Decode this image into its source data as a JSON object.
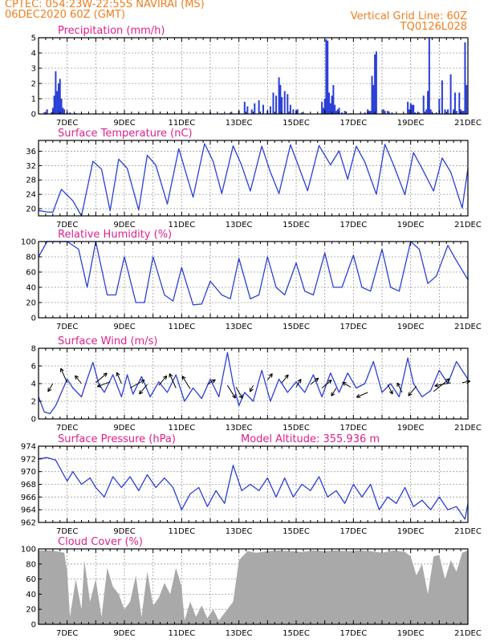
{
  "header": {
    "line1_left": "CPTEC:   054:23W-22:55S   NAVIRAI (MS)",
    "line2_left": "06DEC2020 60Z (GMT)",
    "line1_right": "Vertical Grid Line: 60Z",
    "line2_right": "TQ0126L028"
  },
  "colors": {
    "header": "#f07d1e",
    "title": "#e0208a",
    "line": "#2a3fd8",
    "cloud": "#a9a9a9"
  },
  "x_axis": {
    "range_days": [
      6.0,
      21.0
    ],
    "ticks": [
      {
        "day": 7,
        "label": "7DEC"
      },
      {
        "day": 9,
        "label": "9DEC"
      },
      {
        "day": 11,
        "label": "11DEC"
      },
      {
        "day": 13,
        "label": "13DEC"
      },
      {
        "day": 15,
        "label": "15DEC"
      },
      {
        "day": 17,
        "label": "17DEC"
      },
      {
        "day": 19,
        "label": "19DEC"
      },
      {
        "day": 21,
        "label": "21DEC"
      }
    ]
  },
  "chart_data": [
    {
      "type": "bar",
      "title": "Precipitation (mm/h)",
      "ylim": [
        0,
        5
      ],
      "yticks": [
        0,
        1,
        2,
        3,
        4,
        5
      ],
      "x": [
        6.2,
        6.3,
        6.45,
        6.5,
        6.55,
        6.6,
        6.65,
        6.7,
        6.75,
        6.8,
        6.85,
        6.9,
        7.0,
        7.1,
        7.3,
        7.5,
        8.0,
        8.5,
        9.0,
        9.5,
        10.0,
        10.5,
        11.0,
        11.5,
        12.0,
        12.4,
        12.7,
        13.0,
        13.2,
        13.3,
        13.45,
        13.55,
        13.7,
        13.85,
        14.0,
        14.1,
        14.2,
        14.3,
        14.4,
        14.45,
        14.5,
        14.6,
        14.7,
        14.8,
        14.9,
        15.0,
        15.05,
        15.2,
        15.9,
        15.95,
        16.0,
        16.05,
        16.1,
        16.15,
        16.2,
        16.25,
        16.3,
        16.35,
        16.4,
        16.45,
        16.5,
        16.6,
        16.7,
        16.9,
        17.4,
        17.5,
        17.55,
        17.6,
        17.65,
        17.7,
        17.75,
        17.8,
        18.05,
        18.1,
        18.2,
        18.35,
        18.9,
        18.95,
        19.0,
        19.05,
        19.1,
        19.15,
        19.2,
        19.3,
        19.45,
        19.55,
        19.6,
        19.65,
        19.7,
        19.8,
        19.9,
        20.0,
        20.1,
        20.2,
        20.3,
        20.4,
        20.5,
        20.55,
        20.6,
        20.7,
        20.75,
        20.8,
        20.85,
        20.9,
        20.95
      ],
      "values": [
        0.1,
        0.3,
        0.1,
        0.4,
        1.2,
        2.8,
        1.5,
        2.0,
        2.3,
        1.0,
        0.4,
        0.3,
        0.1,
        0.1,
        0.05,
        0.05,
        0.05,
        0.05,
        0.05,
        0.05,
        0.05,
        0.05,
        0.05,
        0.05,
        0.1,
        0.05,
        0.1,
        0.2,
        0.8,
        0.5,
        0.3,
        0.7,
        0.9,
        0.6,
        0.2,
        0.5,
        1.4,
        1.2,
        2.4,
        1.9,
        1.1,
        1.5,
        1.3,
        0.6,
        0.3,
        0.2,
        0.3,
        0.1,
        0.8,
        0.4,
        1.0,
        4.9,
        4.8,
        1.4,
        0.7,
        1.2,
        1.9,
        0.6,
        0.2,
        0.3,
        0.4,
        0.1,
        0.2,
        0.05,
        0.1,
        0.3,
        0.2,
        0.2,
        2.5,
        1.9,
        3.9,
        4.1,
        0.3,
        0.2,
        0.2,
        0.1,
        0.8,
        0.3,
        0.7,
        0.6,
        0.6,
        0.1,
        0.05,
        0.1,
        1.2,
        0.3,
        1.5,
        5.0,
        0.3,
        0.05,
        0.1,
        1.0,
        2.2,
        0.3,
        0.3,
        2.6,
        0.3,
        1.4,
        0.2,
        1.4,
        0.3,
        0.2,
        0.2,
        4.7,
        1.9
      ]
    },
    {
      "type": "line",
      "title": "Surface Temperature (nC)",
      "ylim": [
        18,
        39
      ],
      "yticks": [
        20,
        24,
        28,
        32,
        36
      ],
      "x": [
        6.0,
        6.3,
        6.5,
        6.8,
        7.2,
        7.5,
        7.9,
        8.2,
        8.5,
        8.8,
        9.1,
        9.5,
        9.8,
        10.1,
        10.5,
        10.9,
        11.4,
        11.8,
        12.1,
        12.4,
        12.8,
        13.1,
        13.4,
        13.8,
        14.1,
        14.4,
        14.8,
        15.1,
        15.4,
        15.8,
        16.2,
        16.5,
        16.8,
        17.1,
        17.4,
        17.8,
        18.1,
        18.4,
        18.8,
        19.1,
        19.4,
        19.8,
        20.1,
        20.4,
        20.8,
        21.0
      ],
      "values": [
        19.5,
        19.1,
        19.0,
        25.4,
        22.2,
        18.0,
        33.2,
        31.0,
        19.4,
        33.8,
        31.2,
        19.6,
        34.9,
        32.1,
        21.3,
        36.7,
        23.2,
        38.1,
        33.2,
        24.2,
        37.5,
        32.0,
        24.9,
        37.4,
        30.2,
        24.2,
        37.8,
        31.5,
        25.0,
        37.6,
        32.2,
        36.1,
        28.2,
        37.4,
        33.0,
        24.0,
        37.9,
        32.2,
        23.9,
        35.6,
        31.2,
        24.9,
        34.1,
        30.2,
        20.2,
        31.2
      ]
    },
    {
      "type": "line",
      "title": "Relative Humidity (%)",
      "ylim": [
        0,
        100
      ],
      "yticks": [
        0,
        20,
        40,
        60,
        80,
        100
      ],
      "x": [
        6.0,
        6.3,
        6.6,
        7.0,
        7.4,
        7.7,
        8.0,
        8.4,
        8.7,
        9.0,
        9.4,
        9.7,
        10.0,
        10.4,
        10.7,
        11.0,
        11.4,
        11.7,
        12.0,
        12.4,
        12.7,
        13.0,
        13.4,
        13.7,
        14.0,
        14.3,
        14.6,
        15.0,
        15.3,
        15.6,
        16.0,
        16.3,
        16.6,
        17.0,
        17.3,
        17.6,
        18.0,
        18.3,
        18.6,
        19.0,
        19.3,
        19.6,
        19.9,
        20.3,
        20.6,
        21.0
      ],
      "values": [
        80,
        100,
        100,
        100,
        90,
        40,
        100,
        30,
        30,
        80,
        20,
        20,
        80,
        30,
        22,
        66,
        17,
        18,
        48,
        30,
        25,
        78,
        25,
        30,
        80,
        40,
        30,
        72,
        35,
        30,
        85,
        40,
        40,
        82,
        40,
        35,
        90,
        40,
        35,
        100,
        90,
        45,
        55,
        95,
        75,
        50
      ]
    },
    {
      "type": "line",
      "title": "Surface Wind (m/s)",
      "ylim": [
        0,
        8
      ],
      "yticks": [
        0,
        2,
        4,
        6,
        8
      ],
      "x": [
        6.0,
        6.2,
        6.4,
        6.6,
        6.8,
        7.0,
        7.2,
        7.5,
        7.7,
        7.9,
        8.1,
        8.3,
        8.6,
        8.9,
        9.1,
        9.3,
        9.6,
        9.9,
        10.2,
        10.5,
        10.8,
        11.1,
        11.4,
        11.7,
        12.0,
        12.3,
        12.6,
        12.8,
        13.0,
        13.2,
        13.5,
        13.8,
        14.1,
        14.4,
        14.7,
        15.0,
        15.3,
        15.6,
        15.9,
        16.2,
        16.5,
        16.8,
        17.1,
        17.4,
        17.7,
        18.0,
        18.3,
        18.6,
        18.9,
        19.1,
        19.4,
        19.7,
        20.0,
        20.3,
        20.6,
        20.9,
        21.0
      ],
      "values": [
        2.5,
        0.8,
        0.6,
        1.5,
        3.0,
        4.5,
        3.5,
        2.5,
        4.5,
        6.4,
        4.0,
        3.0,
        5.0,
        2.5,
        5.0,
        2.8,
        4.8,
        2.5,
        4.2,
        3.0,
        5.0,
        2.0,
        3.5,
        2.3,
        4.5,
        2.5,
        7.5,
        4.0,
        1.5,
        3.0,
        2.0,
        5.5,
        2.0,
        4.5,
        3.0,
        4.2,
        3.0,
        5.0,
        2.5,
        5.2,
        3.0,
        5.2,
        3.5,
        4.0,
        6.5,
        3.0,
        4.0,
        2.5,
        6.9,
        4.0,
        2.5,
        3.2,
        5.5,
        4.0,
        6.5,
        5.0,
        4.5
      ],
      "vectors": [
        [
          6.5,
          4.0,
          -0.3,
          -0.5
        ],
        [
          7.0,
          4.1,
          -0.4,
          0.9
        ],
        [
          7.5,
          4.0,
          -0.4,
          0.5
        ],
        [
          8.0,
          4.1,
          0.7,
          0.6
        ],
        [
          8.5,
          4.2,
          -0.8,
          -0.3
        ],
        [
          8.9,
          4.0,
          -0.3,
          0.7
        ],
        [
          9.2,
          3.5,
          0.9,
          0.5
        ],
        [
          9.8,
          3.9,
          -0.5,
          -0.6
        ],
        [
          10.2,
          3.8,
          0.5,
          0.6
        ],
        [
          10.8,
          3.5,
          -0.4,
          0.9
        ],
        [
          11.3,
          3.4,
          -0.5,
          0.8
        ],
        [
          11.9,
          3.9,
          0.5,
          0.3
        ],
        [
          12.6,
          3.8,
          0.5,
          -0.8
        ],
        [
          12.9,
          3.6,
          0.4,
          -0.7
        ],
        [
          13.5,
          3.8,
          -0.2,
          -0.4
        ],
        [
          14.0,
          4.4,
          0.3,
          0.4
        ],
        [
          14.5,
          4.1,
          0.4,
          0.5
        ],
        [
          15.0,
          3.6,
          0.3,
          0.5
        ],
        [
          15.5,
          3.9,
          0.5,
          0.4
        ],
        [
          15.9,
          3.5,
          0.6,
          0.5
        ],
        [
          16.4,
          3.5,
          -0.3,
          -0.5
        ],
        [
          16.9,
          3.6,
          -0.5,
          0.3
        ],
        [
          17.5,
          3.0,
          -0.7,
          -0.3
        ],
        [
          18.2,
          3.9,
          0.3,
          -0.6
        ],
        [
          18.7,
          3.0,
          -0.3,
          0.6
        ],
        [
          19.2,
          3.7,
          -0.5,
          -0.6
        ],
        [
          19.8,
          3.1,
          1.0,
          0.8
        ],
        [
          20.4,
          4.1,
          -1.0,
          -0.2
        ],
        [
          20.8,
          4.1,
          0.5,
          0.1
        ]
      ]
    },
    {
      "type": "line",
      "title": "Surface Pressure (hPa)",
      "annotation": "Model Altitude: 355.936 m",
      "ylim": [
        962,
        974
      ],
      "yticks": [
        962,
        964,
        966,
        968,
        970,
        972,
        974
      ],
      "x": [
        6.0,
        6.3,
        6.6,
        7.0,
        7.2,
        7.5,
        7.8,
        8.0,
        8.3,
        8.6,
        8.9,
        9.2,
        9.5,
        9.8,
        10.1,
        10.4,
        10.7,
        11.0,
        11.3,
        11.6,
        11.9,
        12.2,
        12.5,
        12.8,
        13.1,
        13.4,
        13.7,
        14.0,
        14.3,
        14.6,
        14.9,
        15.2,
        15.5,
        15.8,
        16.1,
        16.4,
        16.7,
        17.0,
        17.3,
        17.6,
        17.9,
        18.2,
        18.5,
        18.8,
        19.1,
        19.4,
        19.7,
        20.0,
        20.3,
        20.6,
        20.9,
        21.0
      ],
      "values": [
        972.0,
        972.2,
        971.8,
        968.5,
        970.0,
        968.0,
        969.0,
        967.5,
        966.0,
        969.2,
        967.5,
        969.2,
        967.0,
        969.5,
        967.5,
        969.0,
        967.5,
        964.0,
        966.5,
        967.5,
        964.5,
        967.0,
        965.0,
        971.0,
        967.0,
        968.0,
        967.0,
        969.0,
        966.0,
        969.0,
        966.0,
        968.0,
        967.0,
        969.2,
        966.0,
        967.0,
        965.0,
        968.0,
        966.0,
        968.0,
        964.0,
        966.0,
        965.0,
        967.5,
        964.5,
        965.5,
        964.0,
        966.0,
        964.0,
        964.5,
        962.5,
        965.0
      ]
    },
    {
      "type": "area",
      "title": "Cloud Cover (%)",
      "ylim": [
        0,
        100
      ],
      "yticks": [
        0,
        20,
        40,
        60,
        80,
        100
      ],
      "x": [
        6.0,
        6.3,
        6.6,
        6.9,
        7.0,
        7.1,
        7.3,
        7.5,
        7.6,
        7.8,
        8.0,
        8.2,
        8.4,
        8.6,
        8.8,
        9.0,
        9.2,
        9.4,
        9.6,
        9.8,
        10.0,
        10.2,
        10.4,
        10.6,
        10.8,
        11.0,
        11.1,
        11.3,
        11.5,
        11.7,
        11.9,
        12.1,
        12.3,
        12.5,
        12.8,
        13.0,
        13.3,
        13.6,
        14.0,
        14.4,
        14.8,
        15.2,
        15.6,
        16.0,
        16.4,
        16.8,
        17.2,
        17.6,
        18.0,
        18.4,
        18.8,
        19.0,
        19.2,
        19.4,
        19.6,
        19.8,
        20.0,
        20.2,
        20.4,
        20.6,
        20.8,
        21.0
      ],
      "values": [
        98,
        98,
        97,
        95,
        70,
        10,
        60,
        20,
        85,
        30,
        60,
        10,
        75,
        50,
        40,
        20,
        30,
        65,
        10,
        70,
        25,
        35,
        55,
        40,
        75,
        50,
        5,
        30,
        10,
        25,
        8,
        20,
        5,
        15,
        30,
        85,
        97,
        95,
        97,
        98,
        97,
        96,
        98,
        97,
        98,
        97,
        98,
        97,
        95,
        98,
        96,
        90,
        65,
        80,
        40,
        90,
        92,
        60,
        85,
        70,
        95,
        98
      ]
    }
  ]
}
